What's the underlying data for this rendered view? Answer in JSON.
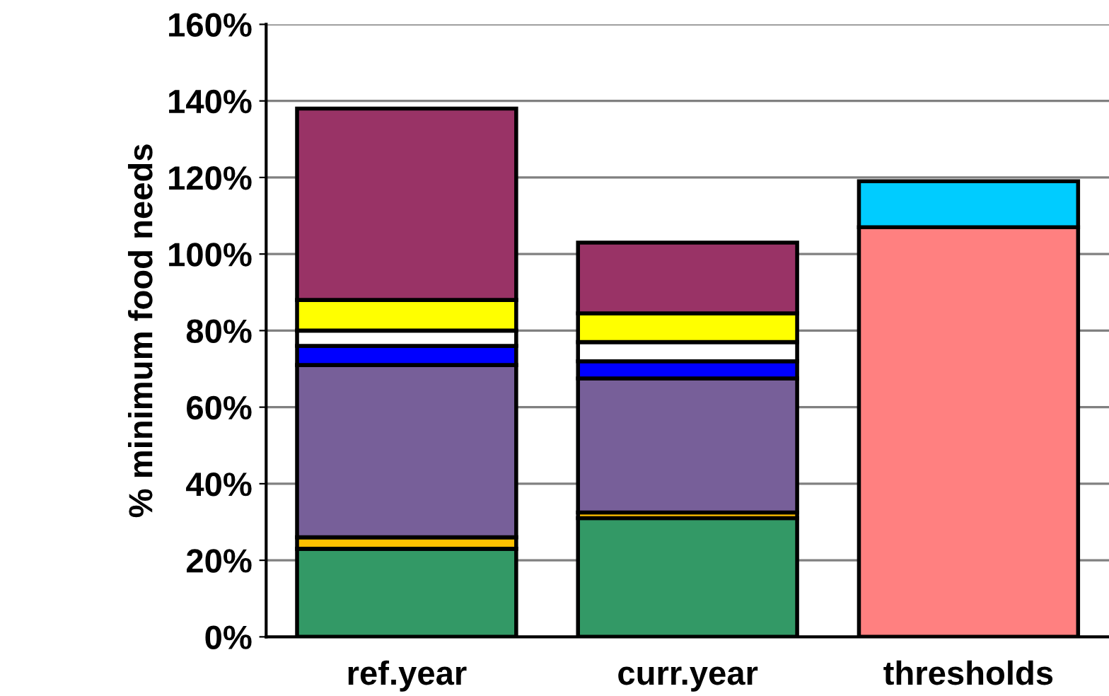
{
  "chart_data": {
    "type": "bar",
    "stacked": true,
    "ylabel": "% minimum food needs",
    "categories": [
      "ref.year",
      "curr.year",
      "thresholds"
    ],
    "series": [
      {
        "color": "#339966",
        "values": [
          23,
          31,
          null
        ]
      },
      {
        "color": "#ffc000",
        "values": [
          3,
          1.5,
          null
        ]
      },
      {
        "color": "#775f99",
        "values": [
          45,
          35,
          null
        ]
      },
      {
        "color": "#0000ff",
        "values": [
          5,
          4.5,
          null
        ]
      },
      {
        "color": "#ffffff",
        "values": [
          4,
          5,
          null
        ]
      },
      {
        "color": "#ffff00",
        "values": [
          8,
          7.5,
          null
        ]
      },
      {
        "color": "#993366",
        "values": [
          50,
          18.5,
          null
        ]
      },
      {
        "color": "#ff8080",
        "values": [
          null,
          null,
          107
        ]
      },
      {
        "color": "#00ccff",
        "values": [
          null,
          null,
          12
        ]
      }
    ],
    "ylim": [
      0,
      160
    ],
    "yticks": [
      {
        "value": 0,
        "label": "0%"
      },
      {
        "value": 20,
        "label": "20%"
      },
      {
        "value": 40,
        "label": "40%"
      },
      {
        "value": 60,
        "label": "60%"
      },
      {
        "value": 80,
        "label": "80%"
      },
      {
        "value": 100,
        "label": "100%"
      },
      {
        "value": 120,
        "label": "120%"
      },
      {
        "value": 140,
        "label": "140%"
      },
      {
        "value": 160,
        "label": "160%"
      }
    ],
    "grid": "y",
    "legend": false
  }
}
